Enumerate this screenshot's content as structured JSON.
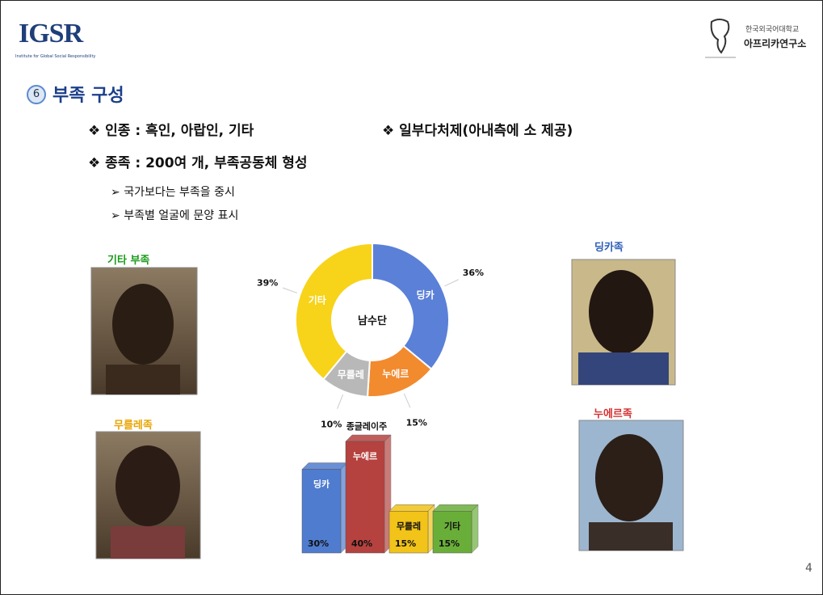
{
  "header": {
    "logo": "IGSR",
    "logo_subtitle": "Institute for Global Social Responsibility",
    "university": "한국외국어대학교",
    "institute": "아프리카연구소"
  },
  "section": {
    "number": "6",
    "title": "부족 구성"
  },
  "bullets": [
    "인종 : 흑인, 아랍인, 기타",
    "종족 : 200여 개, 부족공동체 형성",
    "일부다처제(아내측에 소 제공)"
  ],
  "sub_bullets": [
    "국가보다는 부족을 중시",
    "부족별 얼굴에 문양 표시"
  ],
  "photos": [
    "기타 부족",
    "무를레족",
    "딩카족",
    "누에르족"
  ],
  "page_number": "4",
  "chart_data": [
    {
      "type": "pie",
      "center_label": "남수단",
      "categories": [
        "딩카",
        "누에르",
        "무를레",
        "기타"
      ],
      "values": [
        36,
        15,
        10,
        39
      ],
      "value_labels": [
        "36%",
        "15%",
        "10%",
        "39%"
      ],
      "colors": [
        "#5b80d8",
        "#f28a2e",
        "#b8b8b8",
        "#f7d31a"
      ]
    },
    {
      "type": "bar",
      "title": "종글레이주",
      "categories": [
        "딩카",
        "누에르",
        "무를레",
        "기타"
      ],
      "values": [
        30,
        40,
        15,
        15
      ],
      "value_labels": [
        "30%",
        "40%",
        "15%",
        "15%"
      ],
      "colors": [
        "#4f7ccf",
        "#b5423f",
        "#f2c318",
        "#6aae3a"
      ]
    }
  ]
}
